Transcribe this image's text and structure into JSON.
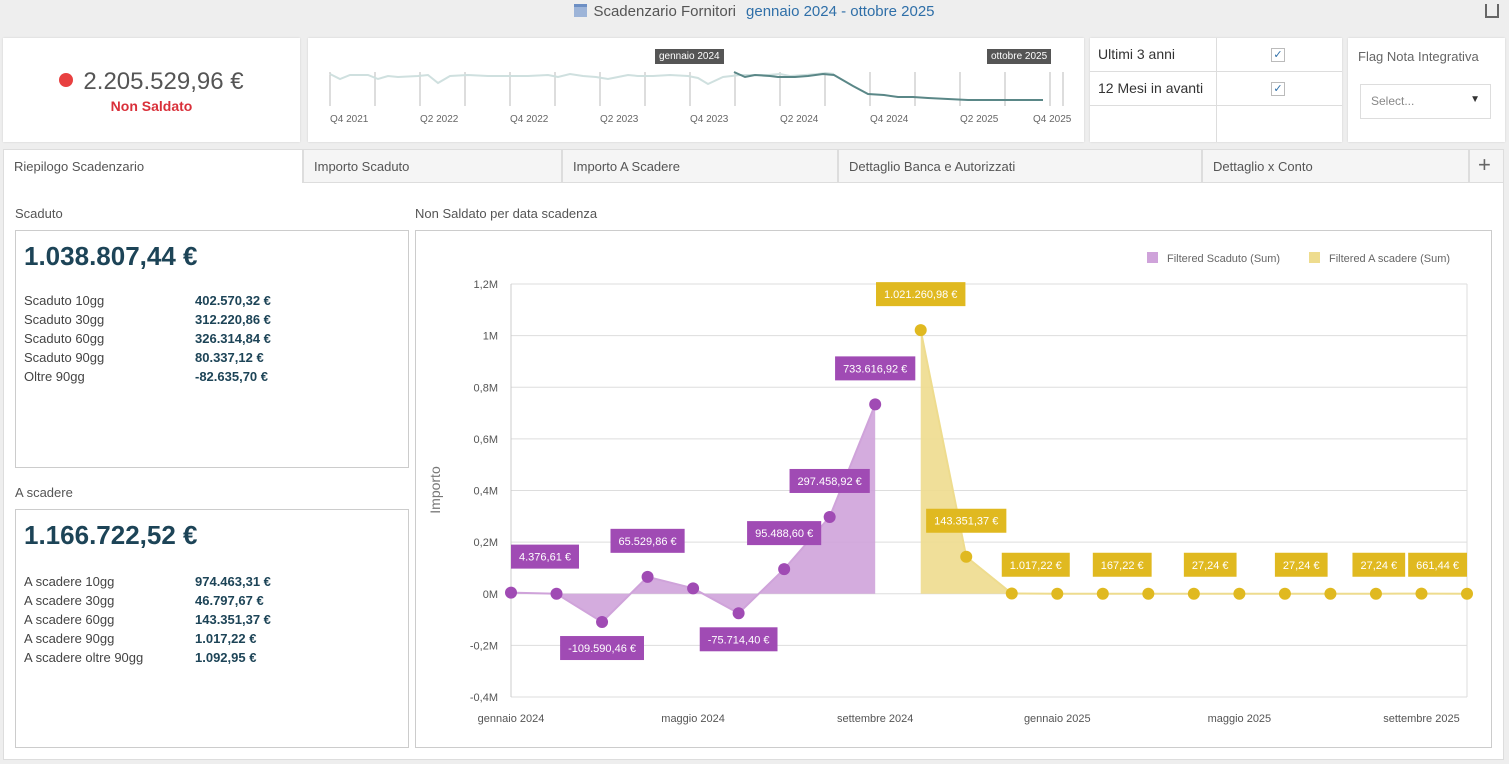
{
  "header": {
    "title": "Scadenzario Fornitori",
    "range": "gennaio 2024 - ottobre 2025"
  },
  "kpi": {
    "value": "2.205.529,96 €",
    "label": "Non Saldato",
    "dot_color": "#e84040"
  },
  "timeline": {
    "ticks": [
      "Q4 2021",
      "Q2 2022",
      "Q4 2022",
      "Q2 2023",
      "Q4 2023",
      "Q2 2024",
      "Q4 2024",
      "Q2 2025",
      "Q4 2025"
    ],
    "start_flag": "gennaio 2024",
    "end_flag": "ottobre 2025"
  },
  "filters": [
    {
      "label": "Ultimi 3 anni",
      "checked": true
    },
    {
      "label": "12 Mesi in avanti",
      "checked": true
    }
  ],
  "flag_nota": {
    "title": "Flag Nota Integrativa",
    "placeholder": "Select..."
  },
  "tabs": [
    "Riepilogo Scadenzario",
    "Importo Scaduto",
    "Importo A Scadere",
    "Dettaglio Banca e Autorizzati",
    "Dettaglio x Conto"
  ],
  "scaduto": {
    "title": "Scaduto",
    "total": "1.038.807,44 €",
    "rows": [
      {
        "k": "Scaduto 10gg",
        "v": "402.570,32 €"
      },
      {
        "k": "Scaduto 30gg",
        "v": "312.220,86 €"
      },
      {
        "k": "Scaduto 60gg",
        "v": "326.314,84 €"
      },
      {
        "k": "Scaduto 90gg",
        "v": "80.337,12 €"
      },
      {
        "k": "Oltre 90gg",
        "v": "-82.635,70 €"
      }
    ]
  },
  "a_scadere": {
    "title": "A scadere",
    "total": "1.166.722,52 €",
    "rows": [
      {
        "k": "A scadere 10gg",
        "v": "974.463,31 €"
      },
      {
        "k": "A scadere 30gg",
        "v": "46.797,67 €"
      },
      {
        "k": "A scadere 60gg",
        "v": "143.351,37 €"
      },
      {
        "k": "A scadere 90gg",
        "v": "1.017,22 €"
      },
      {
        "k": "A scadere oltre 90gg",
        "v": "1.092,95 €"
      }
    ]
  },
  "chart_data": {
    "type": "area",
    "title": "Non Saldato per data scadenza",
    "ylabel": "Importo",
    "xlabel": "",
    "ylim": [
      -400000,
      1200000
    ],
    "yticks": [
      "-0,4M",
      "-0,2M",
      "0M",
      "0,2M",
      "0,4M",
      "0,6M",
      "0,8M",
      "1M",
      "1,2M"
    ],
    "xticks": [
      "gennaio 2024",
      "maggio 2024",
      "settembre 2024",
      "gennaio 2025",
      "maggio 2025",
      "settembre 2025"
    ],
    "legend_position": "top-right",
    "months": 22,
    "series": [
      {
        "name": "Filtered Scaduto (Sum)",
        "color": "#a04bb4",
        "fill": "#cfa3da",
        "start": 0,
        "values": [
          4376.61,
          0,
          -109590.46,
          65529.86,
          21000,
          -75714.4,
          95488.6,
          297458.92,
          733616.92
        ],
        "labels": [
          "4.376,61 €",
          null,
          "-109.590,46 €",
          "65.529,86 €",
          null,
          "-75.714,40 €",
          "95.488,60 €",
          "297.458,92 €",
          "733.616,92 €"
        ]
      },
      {
        "name": "Filtered A scadere (Sum)",
        "color": "#e0b920",
        "fill": "#eedc8e",
        "start": 9,
        "values": [
          1021260.98,
          143351.37,
          1017.22,
          0,
          167.22,
          0,
          27.24,
          0,
          27.24,
          0,
          27.24,
          661.44,
          0
        ],
        "labels": [
          "1.021.260,98 €",
          "143.351,37 €",
          "1.017,22 €",
          null,
          "167,22 €",
          null,
          "27,24 €",
          null,
          "27,24 €",
          null,
          "27,24 €",
          "661,44 €",
          null
        ]
      }
    ]
  }
}
